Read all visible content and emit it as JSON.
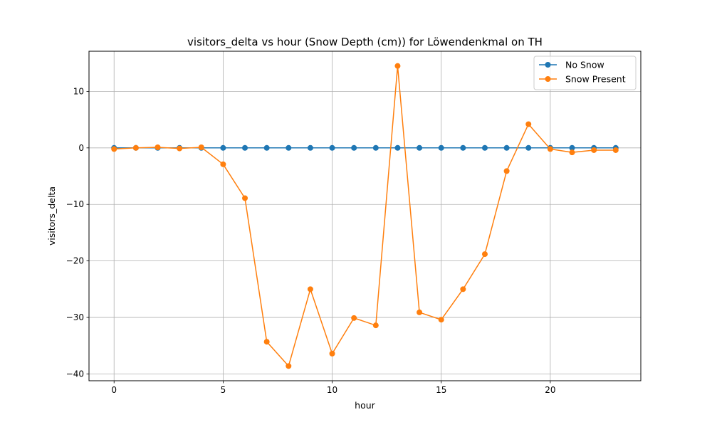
{
  "chart_data": {
    "type": "line",
    "title": "visitors_delta vs hour (Snow Depth (cm)) for Löwendenkmal on TH",
    "xlabel": "hour",
    "ylabel": "visitors_delta",
    "xlim": [
      -1.15,
      24.15
    ],
    "ylim": [
      -41.2,
      17.1
    ],
    "xticks": [
      0,
      5,
      10,
      15,
      20
    ],
    "yticks": [
      -40,
      -30,
      -20,
      -10,
      0,
      10
    ],
    "grid": true,
    "legend_position": "top-right",
    "x": [
      0,
      1,
      2,
      3,
      4,
      5,
      6,
      7,
      8,
      9,
      10,
      11,
      12,
      13,
      14,
      15,
      16,
      17,
      18,
      19,
      20,
      21,
      22,
      23
    ],
    "series": [
      {
        "name": "No Snow",
        "color": "#1f77b4",
        "values": [
          0,
          0,
          0,
          0,
          0,
          0,
          0,
          0,
          0,
          0,
          0,
          0,
          0,
          0,
          0,
          0,
          0,
          0,
          0,
          0,
          0,
          0,
          0,
          0
        ]
      },
      {
        "name": "Snow Present",
        "color": "#ff7f0e",
        "values": [
          -0.2,
          0.0,
          0.1,
          -0.1,
          0.1,
          -2.9,
          -8.9,
          -34.3,
          -38.6,
          -25.0,
          -36.4,
          -30.1,
          -31.4,
          14.5,
          -29.1,
          -30.4,
          -25.0,
          -18.8,
          -4.1,
          4.2,
          -0.2,
          -0.8,
          -0.4,
          -0.4
        ]
      }
    ]
  }
}
